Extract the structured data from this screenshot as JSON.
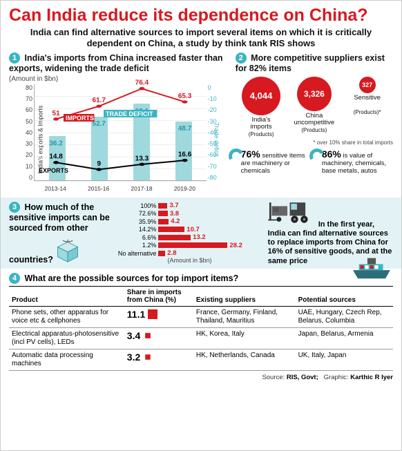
{
  "headline": "Can India reduce its dependence on China?",
  "subhead": "India can find alternative sources to import several items on which it is critically dependent on China, a study by think tank RIS shows",
  "section1": {
    "num": "1",
    "title": "India's imports from China increased faster than exports, widening the trade deficit",
    "unit": "(Amount in $bn)",
    "yaxis_left_label": "India's exports & Imports",
    "yaxis_right_label": "Trade deficit",
    "yticks_left": [
      "80",
      "70",
      "60",
      "50",
      "40",
      "30",
      "20",
      "10",
      "0"
    ],
    "yticks_right": [
      "0",
      "-10",
      "-20",
      "-30",
      "-40",
      "-50",
      "-60",
      "-70",
      "-80"
    ],
    "categories": [
      "2013-14",
      "2015-16",
      "2017-18",
      "2019-20"
    ],
    "imports_label": "IMPORTS",
    "exports_label": "EXPORTS",
    "deficit_label": "TRADE DEFICIT",
    "imports": [
      51,
      61.7,
      76.4,
      65.3
    ],
    "exports": [
      14.8,
      9,
      13.3,
      16.6
    ],
    "deficit": [
      36.2,
      52.7,
      63.1,
      48.7
    ],
    "bar_color": "#9ed9de",
    "import_color": "#d71920",
    "export_color": "#000000",
    "deficit_color": "#2a98a3",
    "ylim": [
      0,
      80
    ],
    "grid_color": "#eeeeee",
    "line_width": 2
  },
  "section2": {
    "num": "2",
    "title": "More competitive suppliers exist for 82% items",
    "bubbles": [
      {
        "value": "4,044",
        "label_top": "India's",
        "label_bot": "imports",
        "sublabel": "(Products)",
        "size": 56,
        "font": 13
      },
      {
        "value": "3,326",
        "label_top": "China",
        "label_bot": "uncompetitive",
        "sublabel": "(Products)",
        "size": 50,
        "font": 12
      },
      {
        "value": "327",
        "label_top": "Sensitive",
        "label_bot": "",
        "sublabel": "(Products)*",
        "size": 24,
        "font": 9
      }
    ],
    "footnote": "* over 10% share in total imports",
    "stats": [
      {
        "pct": "76%",
        "text": "sensitive items are machinery or chemicals"
      },
      {
        "pct": "86%",
        "text": "is value of machinery, chemicals, base metals, autos"
      }
    ]
  },
  "section3": {
    "num": "3",
    "title": "How much of the sensitive imports can be sourced from other countries?",
    "rows": [
      {
        "label": "100%",
        "value": 3.7
      },
      {
        "label": "72.6%",
        "value": 3.8
      },
      {
        "label": "35.9%",
        "value": 4.2
      },
      {
        "label": "14.2%",
        "value": 10.7
      },
      {
        "label": "6.6%",
        "value": 13.2
      },
      {
        "label": "1.2%",
        "value": 28.2
      },
      {
        "label": "No alternative",
        "value": 2.8
      }
    ],
    "max": 28.2,
    "unit": "(Amount in $bn)",
    "right_text": "In the first year, India can find alternative sources to replace imports from China for 16% of sensitive goods, and at the same price"
  },
  "section4": {
    "num": "4",
    "title": "What are the possible sources for top import items?",
    "columns": [
      "Product",
      "Share in imports from China (%)",
      "Existing suppliers",
      "Potential sources"
    ],
    "rows": [
      {
        "product": "Phone sets, other apparatus for voice etc & cellphones",
        "share": "11.1",
        "existing": "France, Germany, Finland, Thailand, Mauritius",
        "potential": "UAE, Hungary, Czech Rep, Belarus, Columbia"
      },
      {
        "product": "Electrical apparatus-photosensitive (incl PV cells), LEDs",
        "share": "3.4",
        "existing": "HK, Korea, Italy",
        "potential": "Japan, Belarus, Armenia"
      },
      {
        "product": "Automatic data processing machines",
        "share": "3.2",
        "existing": "HK, Netherlands, Canada",
        "potential": "UK, Italy, Japan"
      }
    ]
  },
  "footer": {
    "source_label": "Source:",
    "source": "RIS, Govt;",
    "graphic_label": "Graphic:",
    "graphic": "Karthic R Iyer"
  },
  "colors": {
    "red": "#d71920",
    "teal": "#3bb4c1",
    "light_teal": "#9ed9de",
    "panel_bg": "#e3f3f5"
  }
}
